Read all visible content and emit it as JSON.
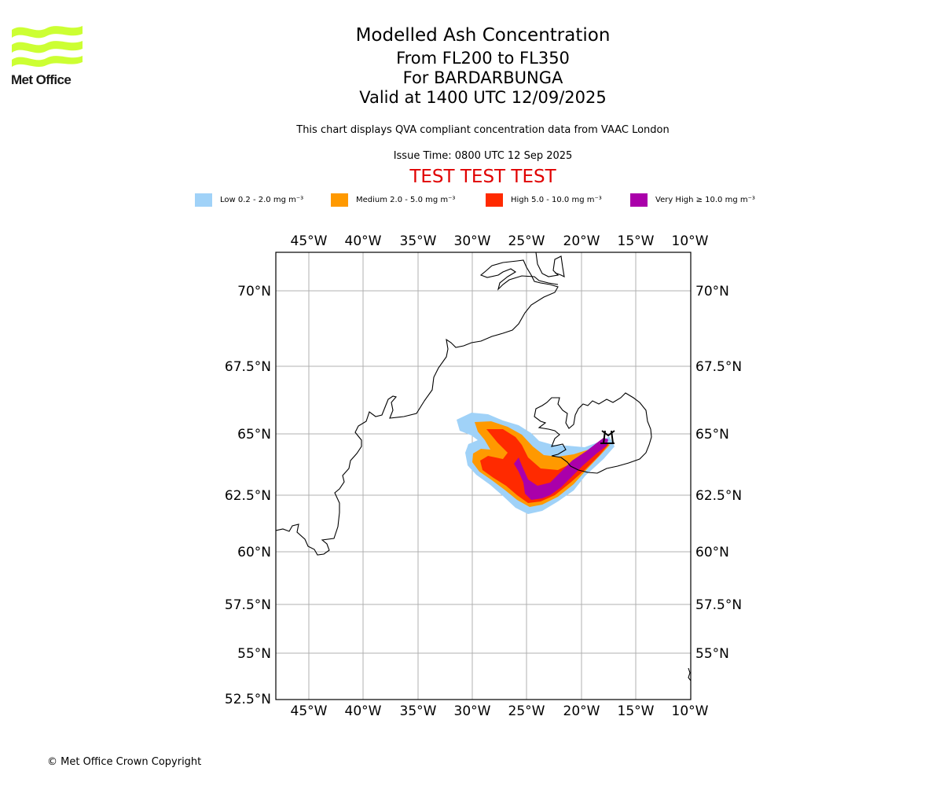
{
  "logo": {
    "text": "Met Office",
    "accent_color": "#ccff33"
  },
  "title": {
    "line1": "Modelled Ash Concentration",
    "line2": "From FL200 to FL350",
    "line3": "For BARDARBUNGA",
    "line4": "Valid at 1400 UTC 12/09/2025"
  },
  "subtitle": "This chart displays QVA compliant concentration data from VAAC London",
  "issue_time": "Issue Time: 0800 UTC 12 Sep 2025",
  "test_banner": "TEST TEST TEST",
  "legend": [
    {
      "label": "Low 0.2 - 2.0 mg m⁻³",
      "color": "#a0d2f8"
    },
    {
      "label": "Medium 2.0 - 5.0 mg m⁻³",
      "color": "#ff9900"
    },
    {
      "label": "High 5.0 - 10.0 mg m⁻³",
      "color": "#ff2a00"
    },
    {
      "label": "Very High ≥ 10.0 mg m⁻³",
      "color": "#aa00aa"
    }
  ],
  "map": {
    "lon_ticks": [
      "45°W",
      "40°W",
      "35°W",
      "30°W",
      "25°W",
      "20°W",
      "15°W",
      "10°W"
    ],
    "lat_ticks": [
      "70°N",
      "67.5°N",
      "65°N",
      "62.5°N",
      "60°N",
      "57.5°N",
      "55°N",
      "52.5°N"
    ],
    "volcano_symbol": "volcano-triangle"
  },
  "copyright": "© Met Office Crown Copyright"
}
